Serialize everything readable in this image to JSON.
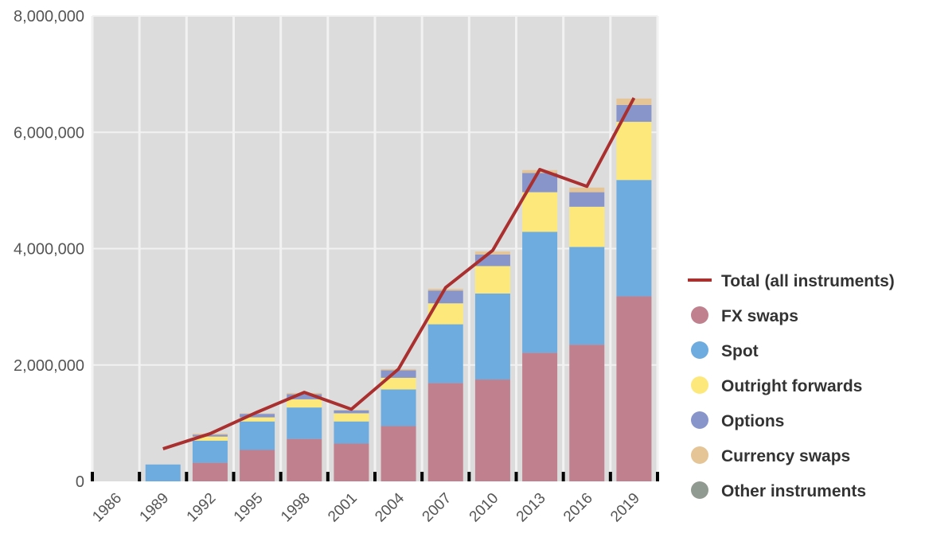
{
  "chart_data": {
    "type": "bar",
    "stacked": true,
    "categories": [
      "1986",
      "1989",
      "1992",
      "1995",
      "1998",
      "2001",
      "2004",
      "2007",
      "2010",
      "2013",
      "2016",
      "2019"
    ],
    "series": [
      {
        "name": "FX swaps",
        "color": "#c0808e",
        "values": [
          0,
          0,
          320000,
          540000,
          730000,
          650000,
          950000,
          1690000,
          1750000,
          2210000,
          2350000,
          3180000
        ]
      },
      {
        "name": "Spot",
        "color": "#6eacdf",
        "values": [
          0,
          290000,
          380000,
          490000,
          540000,
          380000,
          630000,
          1010000,
          1480000,
          2080000,
          1680000,
          2000000
        ]
      },
      {
        "name": "Outright forwards",
        "color": "#fde97b",
        "values": [
          0,
          0,
          70000,
          70000,
          140000,
          140000,
          200000,
          360000,
          470000,
          680000,
          690000,
          1000000
        ]
      },
      {
        "name": "Options",
        "color": "#8895cb",
        "values": [
          0,
          0,
          30000,
          60000,
          90000,
          50000,
          130000,
          220000,
          200000,
          330000,
          250000,
          290000
        ]
      },
      {
        "name": "Currency swaps",
        "color": "#e5c496",
        "values": [
          0,
          0,
          20000,
          10000,
          20000,
          10000,
          20000,
          30000,
          50000,
          50000,
          80000,
          110000
        ]
      },
      {
        "name": "Other instruments",
        "color": "#919a90",
        "values": [
          0,
          0,
          0,
          0,
          0,
          0,
          0,
          0,
          0,
          0,
          0,
          0
        ]
      }
    ],
    "line": {
      "name": "Total (all instruments)",
      "color": "#aa3030",
      "x": [
        "1989",
        "1992",
        "1995",
        "1998",
        "2001",
        "2004",
        "2007",
        "2010",
        "2013",
        "2016",
        "2019"
      ],
      "values": [
        560000,
        820000,
        1190000,
        1530000,
        1240000,
        1930000,
        3330000,
        3970000,
        5360000,
        5070000,
        6590000
      ]
    },
    "ylim": [
      0,
      8000000
    ],
    "yticks": [
      "0",
      "2,000,000",
      "4,000,000",
      "6,000,000",
      "8,000,000"
    ],
    "ytick_values": [
      0,
      2000000,
      4000000,
      6000000,
      8000000
    ],
    "grid": true,
    "legend_position": "right",
    "plot_background": "#dcdcdc"
  }
}
